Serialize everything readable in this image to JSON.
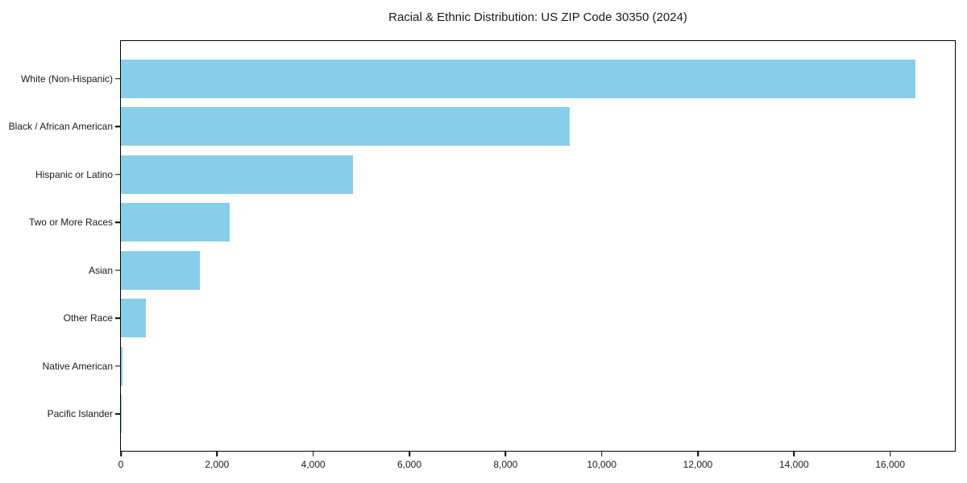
{
  "chart_data": {
    "type": "bar",
    "orientation": "horizontal",
    "title": "Racial & Ethnic Distribution: US ZIP Code 30350 (2024)",
    "categories": [
      "White (Non-Hispanic)",
      "Black / African American",
      "Hispanic or Latino",
      "Two or More Races",
      "Asian",
      "Other Race",
      "Native American",
      "Pacific Islander"
    ],
    "values": [
      16520,
      9340,
      4820,
      2260,
      1650,
      520,
      40,
      10
    ],
    "xlabel": "",
    "ylabel": "",
    "xlim": [
      0,
      17346
    ],
    "x_ticks": [
      0,
      2000,
      4000,
      6000,
      8000,
      10000,
      12000,
      14000,
      16000
    ],
    "x_tick_labels": [
      "0",
      "2,000",
      "4,000",
      "6,000",
      "8,000",
      "10,000",
      "12,000",
      "14,000",
      "16,000"
    ],
    "bar_color": "#87CEEB",
    "text_color": "#1a1a1a",
    "grid": false,
    "legend": null,
    "categories_order": "top-to-bottom descending"
  }
}
